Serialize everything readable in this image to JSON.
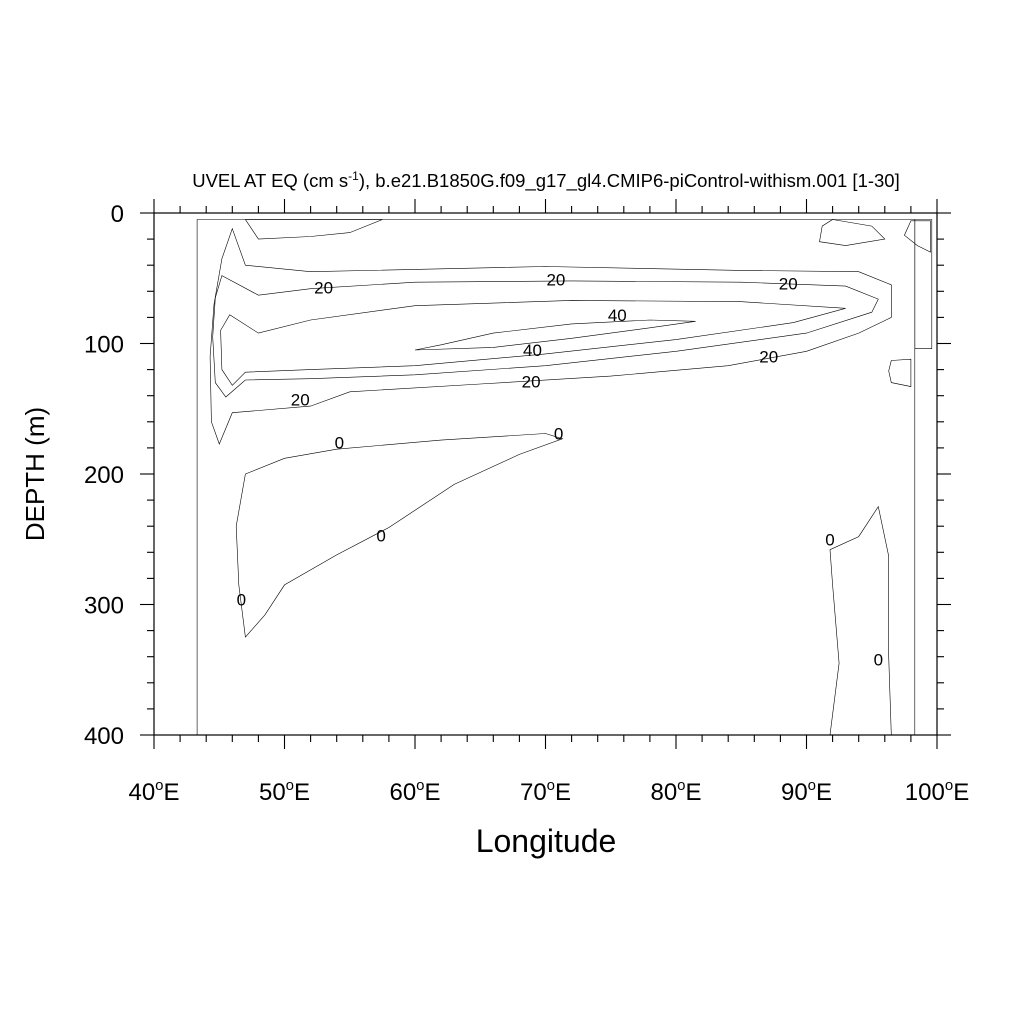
{
  "chart_data": {
    "type": "contour",
    "title_main": "UVEL AT EQ (cm s",
    "title_sup": "-1",
    "title_rest": "), b.e21.B1850G.f09_g17_gl4.CMIP6-piControl-withism.001 [1-30]",
    "xlabel": "Longitude",
    "ylabel": "DEPTH (m)",
    "xlim": [
      40,
      100
    ],
    "ylim": [
      0,
      400
    ],
    "x_ticks": [
      {
        "value": 40,
        "label": "40",
        "sup": "o",
        "suffix": "E"
      },
      {
        "value": 50,
        "label": "50",
        "sup": "o",
        "suffix": "E"
      },
      {
        "value": 60,
        "label": "60",
        "sup": "o",
        "suffix": "E"
      },
      {
        "value": 70,
        "label": "70",
        "sup": "o",
        "suffix": "E"
      },
      {
        "value": 80,
        "label": "80",
        "sup": "o",
        "suffix": "E"
      },
      {
        "value": 90,
        "label": "90",
        "sup": "o",
        "suffix": "E"
      },
      {
        "value": 100,
        "label": "100",
        "sup": "o",
        "suffix": "E"
      }
    ],
    "y_ticks": [
      {
        "value": 0,
        "label": "0"
      },
      {
        "value": 100,
        "label": "100"
      },
      {
        "value": 200,
        "label": "200"
      },
      {
        "value": 300,
        "label": "300"
      },
      {
        "value": 400,
        "label": "400"
      }
    ],
    "colors": {
      "below_0": "#00ffc8",
      "0_10": "#00f050",
      "10_20": "#50f000",
      "20_30": "#ffff00",
      "30_40": "#ffdc28",
      "above_40": "#ffb432"
    },
    "regions": [
      {
        "cls": "fill-0",
        "points": [
          [
            43.3,
            5
          ],
          [
            98.3,
            5
          ],
          [
            98.3,
            400
          ],
          [
            43.3,
            400
          ]
        ]
      },
      {
        "cls": "fill-0",
        "points": [
          [
            98.3,
            5
          ],
          [
            99.6,
            5
          ],
          [
            99.6,
            104
          ],
          [
            98.3,
            104
          ]
        ]
      },
      {
        "cls": "fill-10",
        "points": [
          [
            46,
            12
          ],
          [
            47,
            40
          ],
          [
            52,
            45
          ],
          [
            70,
            41
          ],
          [
            85,
            44
          ],
          [
            94,
            45
          ],
          [
            96.5,
            55
          ],
          [
            96.5,
            80
          ],
          [
            94,
            92
          ],
          [
            90,
            106
          ],
          [
            84,
            117
          ],
          [
            75,
            125
          ],
          [
            65,
            131
          ],
          [
            55,
            137
          ],
          [
            52,
            148
          ],
          [
            46,
            153
          ],
          [
            45,
            177
          ],
          [
            44.4,
            160
          ],
          [
            44.3,
            110
          ],
          [
            44.6,
            70
          ],
          [
            45.2,
            35
          ]
        ]
      },
      {
        "cls": "fill-20",
        "points": [
          [
            45.2,
            48
          ],
          [
            48,
            63
          ],
          [
            52,
            58
          ],
          [
            60,
            53
          ],
          [
            72,
            52
          ],
          [
            85,
            53
          ],
          [
            93,
            56
          ],
          [
            95.5,
            66
          ],
          [
            95,
            76
          ],
          [
            90,
            92
          ],
          [
            80,
            106
          ],
          [
            70,
            117
          ],
          [
            60,
            124
          ],
          [
            52,
            127
          ],
          [
            47,
            128
          ],
          [
            45.5,
            141
          ],
          [
            44.7,
            130
          ],
          [
            44.5,
            95
          ],
          [
            44.7,
            65
          ]
        ]
      },
      {
        "cls": "fill-30",
        "points": [
          [
            45.8,
            78
          ],
          [
            48,
            92
          ],
          [
            52,
            82
          ],
          [
            60,
            71
          ],
          [
            72,
            67
          ],
          [
            85,
            68
          ],
          [
            93,
            73
          ],
          [
            89,
            84
          ],
          [
            80,
            97
          ],
          [
            70,
            108
          ],
          [
            60,
            117
          ],
          [
            52,
            120
          ],
          [
            47,
            122
          ],
          [
            46,
            132
          ],
          [
            45.2,
            120
          ],
          [
            45.1,
            90
          ]
        ]
      },
      {
        "cls": "fill-40",
        "points": [
          [
            60,
            105
          ],
          [
            62,
            101
          ],
          [
            66,
            92
          ],
          [
            72,
            85
          ],
          [
            78,
            82
          ],
          [
            81.5,
            83
          ],
          [
            78,
            88
          ],
          [
            72,
            96
          ],
          [
            66,
            103
          ]
        ]
      },
      {
        "cls": "fill-n0",
        "points": [
          [
            47,
            5
          ],
          [
            57.5,
            5
          ],
          [
            55,
            15
          ],
          [
            52,
            18
          ],
          [
            48,
            20
          ]
        ]
      },
      {
        "cls": "fill-n0",
        "points": [
          [
            92,
            5
          ],
          [
            95,
            10
          ],
          [
            96,
            20
          ],
          [
            93,
            25
          ],
          [
            91,
            22
          ],
          [
            91.2,
            10
          ]
        ]
      },
      {
        "cls": "fill-n0",
        "points": [
          [
            98,
            6
          ],
          [
            99.5,
            6
          ],
          [
            99.5,
            30
          ],
          [
            98.5,
            25
          ],
          [
            97.5,
            17
          ]
        ]
      },
      {
        "cls": "fill-n0",
        "points": [
          [
            96.5,
            113
          ],
          [
            98,
            112
          ],
          [
            98,
            133
          ],
          [
            96.5,
            130
          ],
          [
            96.3,
            121
          ]
        ]
      },
      {
        "cls": "fill-n0",
        "points": [
          [
            47,
            200
          ],
          [
            50,
            188
          ],
          [
            54,
            181
          ],
          [
            62,
            174
          ],
          [
            70,
            169
          ],
          [
            71.3,
            173
          ],
          [
            68,
            185
          ],
          [
            63,
            208
          ],
          [
            58,
            241
          ],
          [
            54,
            262
          ],
          [
            50,
            285
          ],
          [
            48.5,
            308
          ],
          [
            47,
            325
          ],
          [
            46.5,
            285
          ],
          [
            46.3,
            240
          ]
        ]
      },
      {
        "cls": "fill-n0",
        "points": [
          [
            91.8,
            258
          ],
          [
            94,
            248
          ],
          [
            95.5,
            225
          ],
          [
            96.3,
            263
          ],
          [
            96.3,
            340
          ],
          [
            96.5,
            400
          ],
          [
            91.8,
            400
          ],
          [
            92.5,
            345
          ],
          [
            92,
            285
          ]
        ]
      }
    ],
    "contour_labels": [
      {
        "x": 53,
        "y": 57,
        "text": "20"
      },
      {
        "x": 70.8,
        "y": 51,
        "text": "20"
      },
      {
        "x": 88.6,
        "y": 54,
        "text": "20"
      },
      {
        "x": 75.5,
        "y": 78,
        "text": "40"
      },
      {
        "x": 69,
        "y": 105,
        "text": "40"
      },
      {
        "x": 68.9,
        "y": 129,
        "text": "20"
      },
      {
        "x": 87.1,
        "y": 110,
        "text": "20"
      },
      {
        "x": 51.2,
        "y": 143,
        "text": "20"
      },
      {
        "x": 54.2,
        "y": 176,
        "text": "0"
      },
      {
        "x": 71,
        "y": 169,
        "text": "0"
      },
      {
        "x": 57.4,
        "y": 247,
        "text": "0"
      },
      {
        "x": 46.7,
        "y": 296,
        "text": "0"
      },
      {
        "x": 91.8,
        "y": 250,
        "text": "0"
      },
      {
        "x": 95.5,
        "y": 342,
        "text": "0"
      }
    ]
  }
}
